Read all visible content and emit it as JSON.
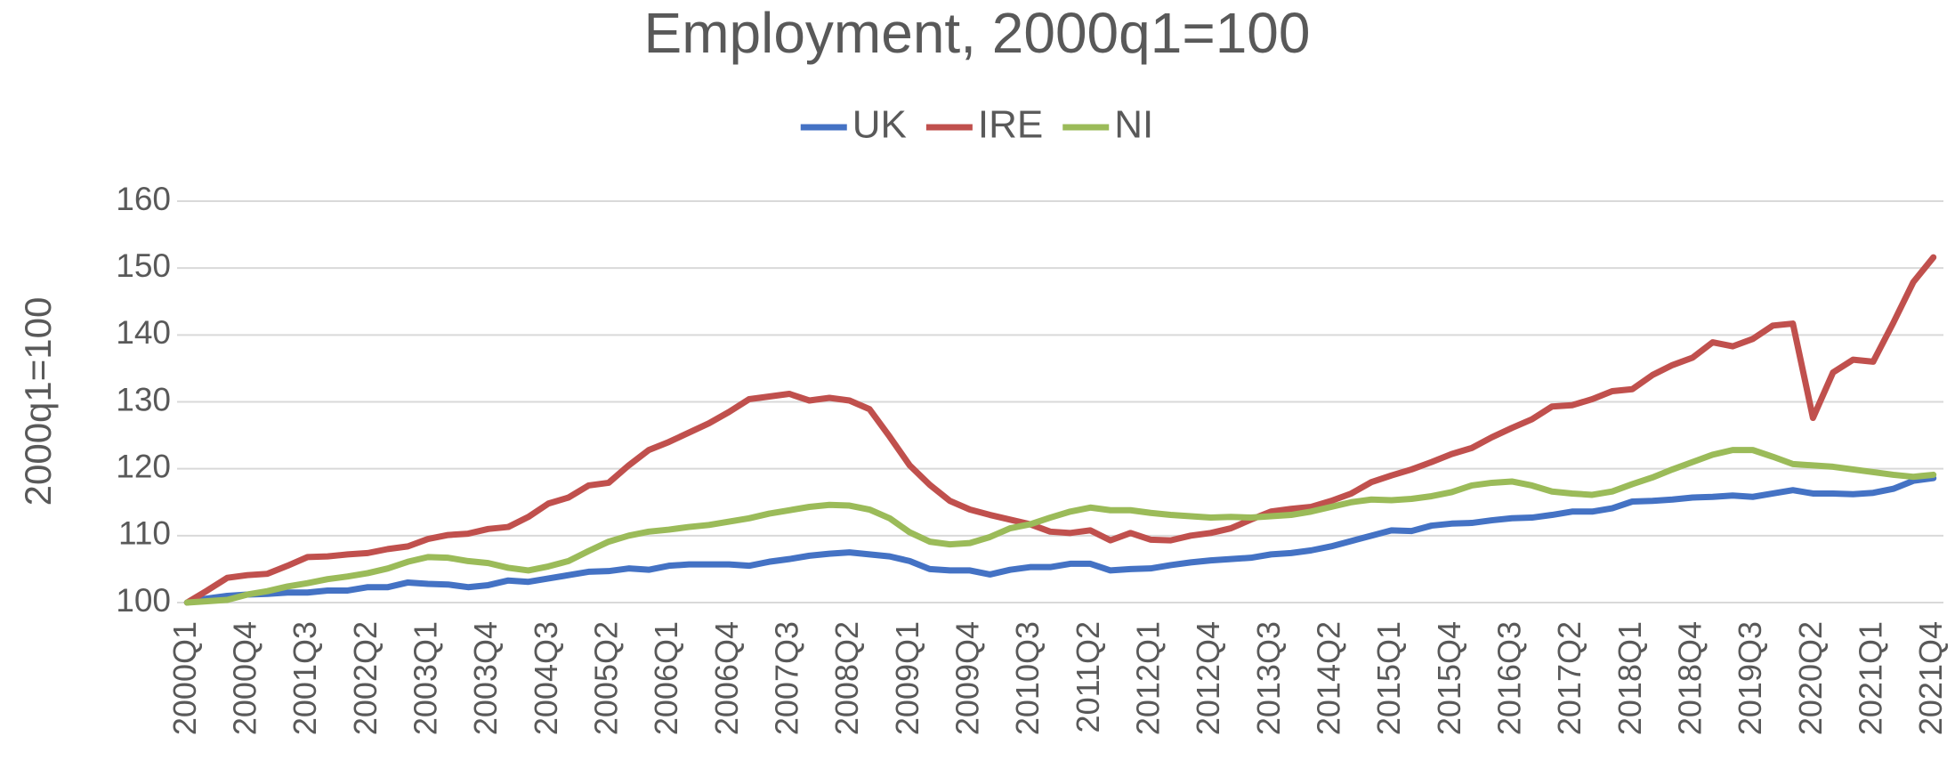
{
  "chart_data": {
    "type": "line",
    "title": "Employment, 2000q1=100",
    "y_label": "2000q1=100",
    "categories": [
      "2000Q1",
      null,
      null,
      "2000Q4",
      null,
      null,
      "2001Q3",
      null,
      null,
      "2002Q2",
      null,
      null,
      "2003Q1",
      null,
      null,
      "2003Q4",
      null,
      null,
      "2004Q3",
      null,
      null,
      "2005Q2",
      null,
      null,
      "2006Q1",
      null,
      null,
      "2006Q4",
      null,
      null,
      "2007Q3",
      null,
      null,
      "2008Q2",
      null,
      null,
      "2009Q1",
      null,
      null,
      "2009Q4",
      null,
      null,
      "2010Q3",
      null,
      null,
      "2011Q2",
      null,
      null,
      "2012Q1",
      null,
      null,
      "2012Q4",
      null,
      null,
      "2013Q3",
      null,
      null,
      "2014Q2",
      null,
      null,
      "2015Q1",
      null,
      null,
      "2015Q4",
      null,
      null,
      "2016Q3",
      null,
      null,
      "2017Q2",
      null,
      null,
      "2018Q1",
      null,
      null,
      "2018Q4",
      null,
      null,
      "2019Q3",
      null,
      null,
      "2020Q2",
      null,
      null,
      "2021Q1",
      null,
      null,
      "2021Q4"
    ],
    "series": [
      {
        "name": "UK",
        "color": "#4472c4",
        "values": [
          100,
          100.6,
          101.0,
          101.2,
          101.3,
          101.5,
          101.5,
          101.8,
          101.8,
          102.3,
          102.3,
          103.0,
          102.8,
          102.7,
          102.3,
          102.6,
          103.3,
          103.1,
          103.6,
          104.1,
          104.6,
          104.7,
          105.1,
          104.9,
          105.5,
          105.7,
          105.7,
          105.7,
          105.5,
          106.1,
          106.5,
          107.0,
          107.3,
          107.5,
          107.2,
          106.9,
          106.2,
          105.0,
          104.8,
          104.8,
          104.2,
          104.9,
          105.3,
          105.3,
          105.8,
          105.8,
          104.8,
          105.0,
          105.1,
          105.6,
          106.0,
          106.3,
          106.5,
          106.7,
          107.2,
          107.4,
          107.8,
          108.4,
          109.2,
          110.0,
          110.8,
          110.7,
          111.5,
          111.8,
          111.9,
          112.3,
          112.6,
          112.7,
          113.1,
          113.6,
          113.6,
          114.1,
          115.1,
          115.2,
          115.4,
          115.7,
          115.8,
          116.0,
          115.8,
          116.3,
          116.8,
          116.3,
          116.3,
          116.2,
          116.4,
          117.0,
          118.2,
          118.6
        ]
      },
      {
        "name": "IRE",
        "color": "#c0504d",
        "values": [
          100,
          101.8,
          103.7,
          104.1,
          104.3,
          105.5,
          106.8,
          106.9,
          107.2,
          107.4,
          108.0,
          108.4,
          109.5,
          110.1,
          110.3,
          111.0,
          111.3,
          112.8,
          114.8,
          115.7,
          117.5,
          117.9,
          120.5,
          122.8,
          124.0,
          125.4,
          126.8,
          128.5,
          130.4,
          130.8,
          131.2,
          130.2,
          130.6,
          130.2,
          128.9,
          124.8,
          120.5,
          117.6,
          115.2,
          113.9,
          113.1,
          112.4,
          111.7,
          110.6,
          110.4,
          110.8,
          109.3,
          110.4,
          109.4,
          109.3,
          110.0,
          110.4,
          111.1,
          112.4,
          113.6,
          114.0,
          114.3,
          115.2,
          116.3,
          118.0,
          119.0,
          119.9,
          121.0,
          122.2,
          123.1,
          124.7,
          126.1,
          127.4,
          129.3,
          129.5,
          130.4,
          131.6,
          131.9,
          134.0,
          135.5,
          136.6,
          138.9,
          138.3,
          139.4,
          141.4,
          141.7,
          127.6,
          134.4,
          136.3,
          136.0,
          141.8,
          147.9,
          151.6
        ]
      },
      {
        "name": "NI",
        "color": "#9bbb59",
        "values": [
          100,
          100.2,
          100.4,
          101.2,
          101.7,
          102.4,
          102.9,
          103.5,
          103.9,
          104.4,
          105.1,
          106.1,
          106.8,
          106.7,
          106.2,
          105.9,
          105.2,
          104.8,
          105.4,
          106.2,
          107.7,
          109.1,
          110.0,
          110.6,
          110.9,
          111.3,
          111.6,
          112.1,
          112.6,
          113.3,
          113.8,
          114.3,
          114.6,
          114.5,
          113.9,
          112.6,
          110.5,
          109.1,
          108.7,
          108.9,
          109.8,
          111.1,
          111.7,
          112.7,
          113.6,
          114.2,
          113.8,
          113.8,
          113.4,
          113.1,
          112.9,
          112.7,
          112.8,
          112.7,
          112.9,
          113.1,
          113.6,
          114.3,
          115.0,
          115.4,
          115.3,
          115.5,
          115.9,
          116.5,
          117.5,
          117.9,
          118.1,
          117.5,
          116.6,
          116.3,
          116.1,
          116.6,
          117.7,
          118.7,
          119.9,
          121.0,
          122.1,
          122.8,
          122.8,
          121.8,
          120.7,
          120.5,
          120.3,
          119.9,
          119.5,
          119.1,
          118.8,
          119.1
        ]
      }
    ],
    "ylim": [
      100,
      160
    ],
    "yticks": [
      100,
      110,
      120,
      130,
      140,
      150,
      160
    ],
    "grid": true,
    "legend": "top"
  }
}
